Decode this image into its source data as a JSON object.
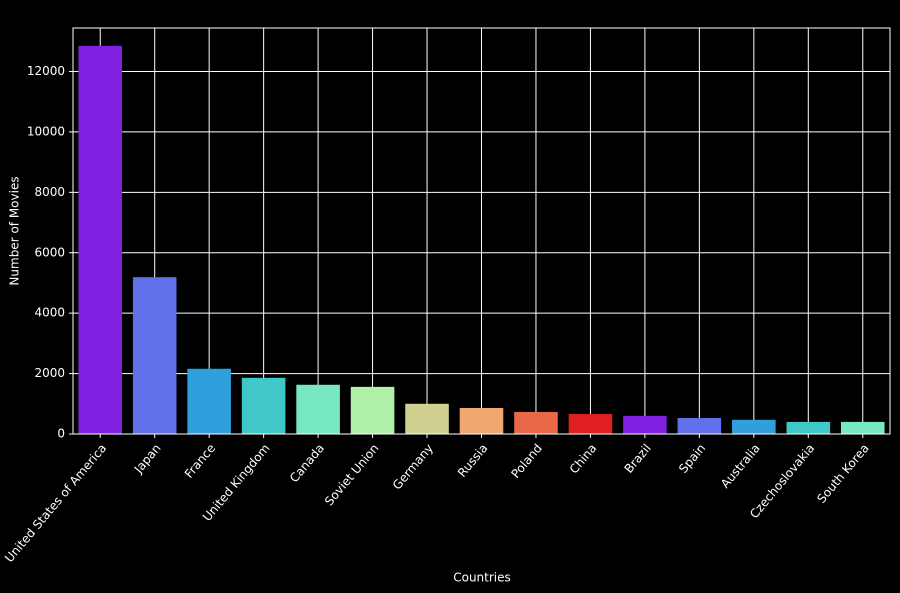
{
  "chart_data": {
    "type": "bar",
    "xlabel": "Countries",
    "ylabel": "Number of Movies",
    "categories": [
      "United States of America",
      "Japan",
      "France",
      "United Kingdom",
      "Canada",
      "Soviet Union",
      "Germany",
      "Russia",
      "Poland",
      "China",
      "Brazil",
      "Spain",
      "Australia",
      "Czechoslovakia",
      "South Korea"
    ],
    "values": [
      12850,
      5190,
      2160,
      1860,
      1630,
      1560,
      1000,
      860,
      730,
      660,
      600,
      530,
      470,
      400,
      400
    ],
    "colors": [
      "#8020e0",
      "#6070e8",
      "#30a0dc",
      "#40c8c8",
      "#78e8c0",
      "#b0f0a8",
      "#d0d090",
      "#f0a870",
      "#e86848",
      "#e02020",
      "#8020e0",
      "#6070e8",
      "#30a0dc",
      "#40c8c8",
      "#78e8c0"
    ],
    "ylim": [
      0,
      13440
    ],
    "yticks": [
      0,
      2000,
      4000,
      6000,
      8000,
      10000,
      12000
    ],
    "grid": true
  }
}
